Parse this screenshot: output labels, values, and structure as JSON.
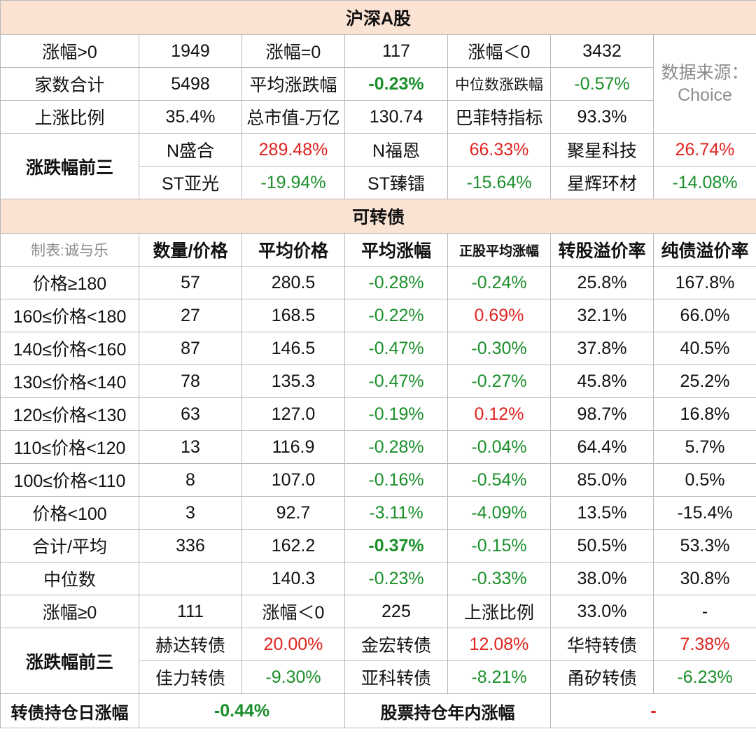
{
  "a_share": {
    "title": "沪深A股",
    "rows": [
      [
        "涨幅>0",
        "1949",
        "涨幅=0",
        "117",
        "涨幅＜0",
        "3432"
      ],
      [
        "家数合计",
        "5498",
        "平均涨跌幅",
        "-0.23%",
        "中位数涨跌幅",
        "-0.57%"
      ],
      [
        "上涨比例",
        "35.4%",
        "总市值-万亿",
        "130.74",
        "巴菲特指标",
        "93.3%"
      ]
    ],
    "source_label": "数据来源：",
    "source_name": "Choice",
    "top3_label": "涨跌幅前三",
    "gainers": [
      [
        "N盛合",
        "289.48%"
      ],
      [
        "N福恩",
        "66.33%"
      ],
      [
        "聚星科技",
        "26.74%"
      ]
    ],
    "losers": [
      [
        "ST亚光",
        "-19.94%"
      ],
      [
        "ST臻镭",
        "-15.64%"
      ],
      [
        "星辉环材",
        "-14.08%"
      ]
    ]
  },
  "cb": {
    "title": "可转债",
    "maker": "制表:诚与乐",
    "headers": [
      "数量/价格",
      "平均价格",
      "平均涨幅",
      "正股平均涨幅",
      "转股溢价率",
      "纯债溢价率"
    ],
    "rows": [
      [
        "价格≥180",
        "57",
        "280.5",
        "-0.28%",
        "-0.24%",
        "25.8%",
        "167.8%"
      ],
      [
        "160≤价格<180",
        "27",
        "168.5",
        "-0.22%",
        "0.69%",
        "32.1%",
        "66.0%"
      ],
      [
        "140≤价格<160",
        "87",
        "146.5",
        "-0.47%",
        "-0.30%",
        "37.8%",
        "40.5%"
      ],
      [
        "130≤价格<140",
        "78",
        "135.3",
        "-0.47%",
        "-0.27%",
        "45.8%",
        "25.2%"
      ],
      [
        "120≤价格<130",
        "63",
        "127.0",
        "-0.19%",
        "0.12%",
        "98.7%",
        "16.8%"
      ],
      [
        "110≤价格<120",
        "13",
        "116.9",
        "-0.28%",
        "-0.04%",
        "64.4%",
        "5.7%"
      ],
      [
        "100≤价格<110",
        "8",
        "107.0",
        "-0.16%",
        "-0.54%",
        "85.0%",
        "0.5%"
      ],
      [
        "价格<100",
        "3",
        "92.7",
        "-3.11%",
        "-4.09%",
        "13.5%",
        "-15.4%"
      ],
      [
        "合计/平均",
        "336",
        "162.2",
        "-0.37%",
        "-0.15%",
        "50.5%",
        "53.3%"
      ],
      [
        "中位数",
        "",
        "140.3",
        "-0.23%",
        "-0.33%",
        "38.0%",
        "30.8%"
      ]
    ],
    "updown": [
      "涨幅≥0",
      "111",
      "涨幅＜0",
      "225",
      "上涨比例",
      "33.0%",
      "-"
    ],
    "top3_label": "涨跌幅前三",
    "gainers": [
      [
        "赫达转债",
        "20.00%"
      ],
      [
        "金宏转债",
        "12.08%"
      ],
      [
        "华特转债",
        "7.38%"
      ]
    ],
    "losers": [
      [
        "佳力转债",
        "-9.30%"
      ],
      [
        "亚科转债",
        "-8.21%"
      ],
      [
        "甬矽转债",
        "-6.23%"
      ]
    ]
  },
  "footer": {
    "cb_label": "转债持仓日涨幅",
    "cb_value": "-0.44%",
    "stock_label": "股票持仓年内涨幅",
    "stock_value": "-"
  },
  "colors": {
    "up": "#e0231e",
    "down": "#1b8f2b",
    "header_bg": "#fbe3d3",
    "source": "#8c8c8c"
  }
}
